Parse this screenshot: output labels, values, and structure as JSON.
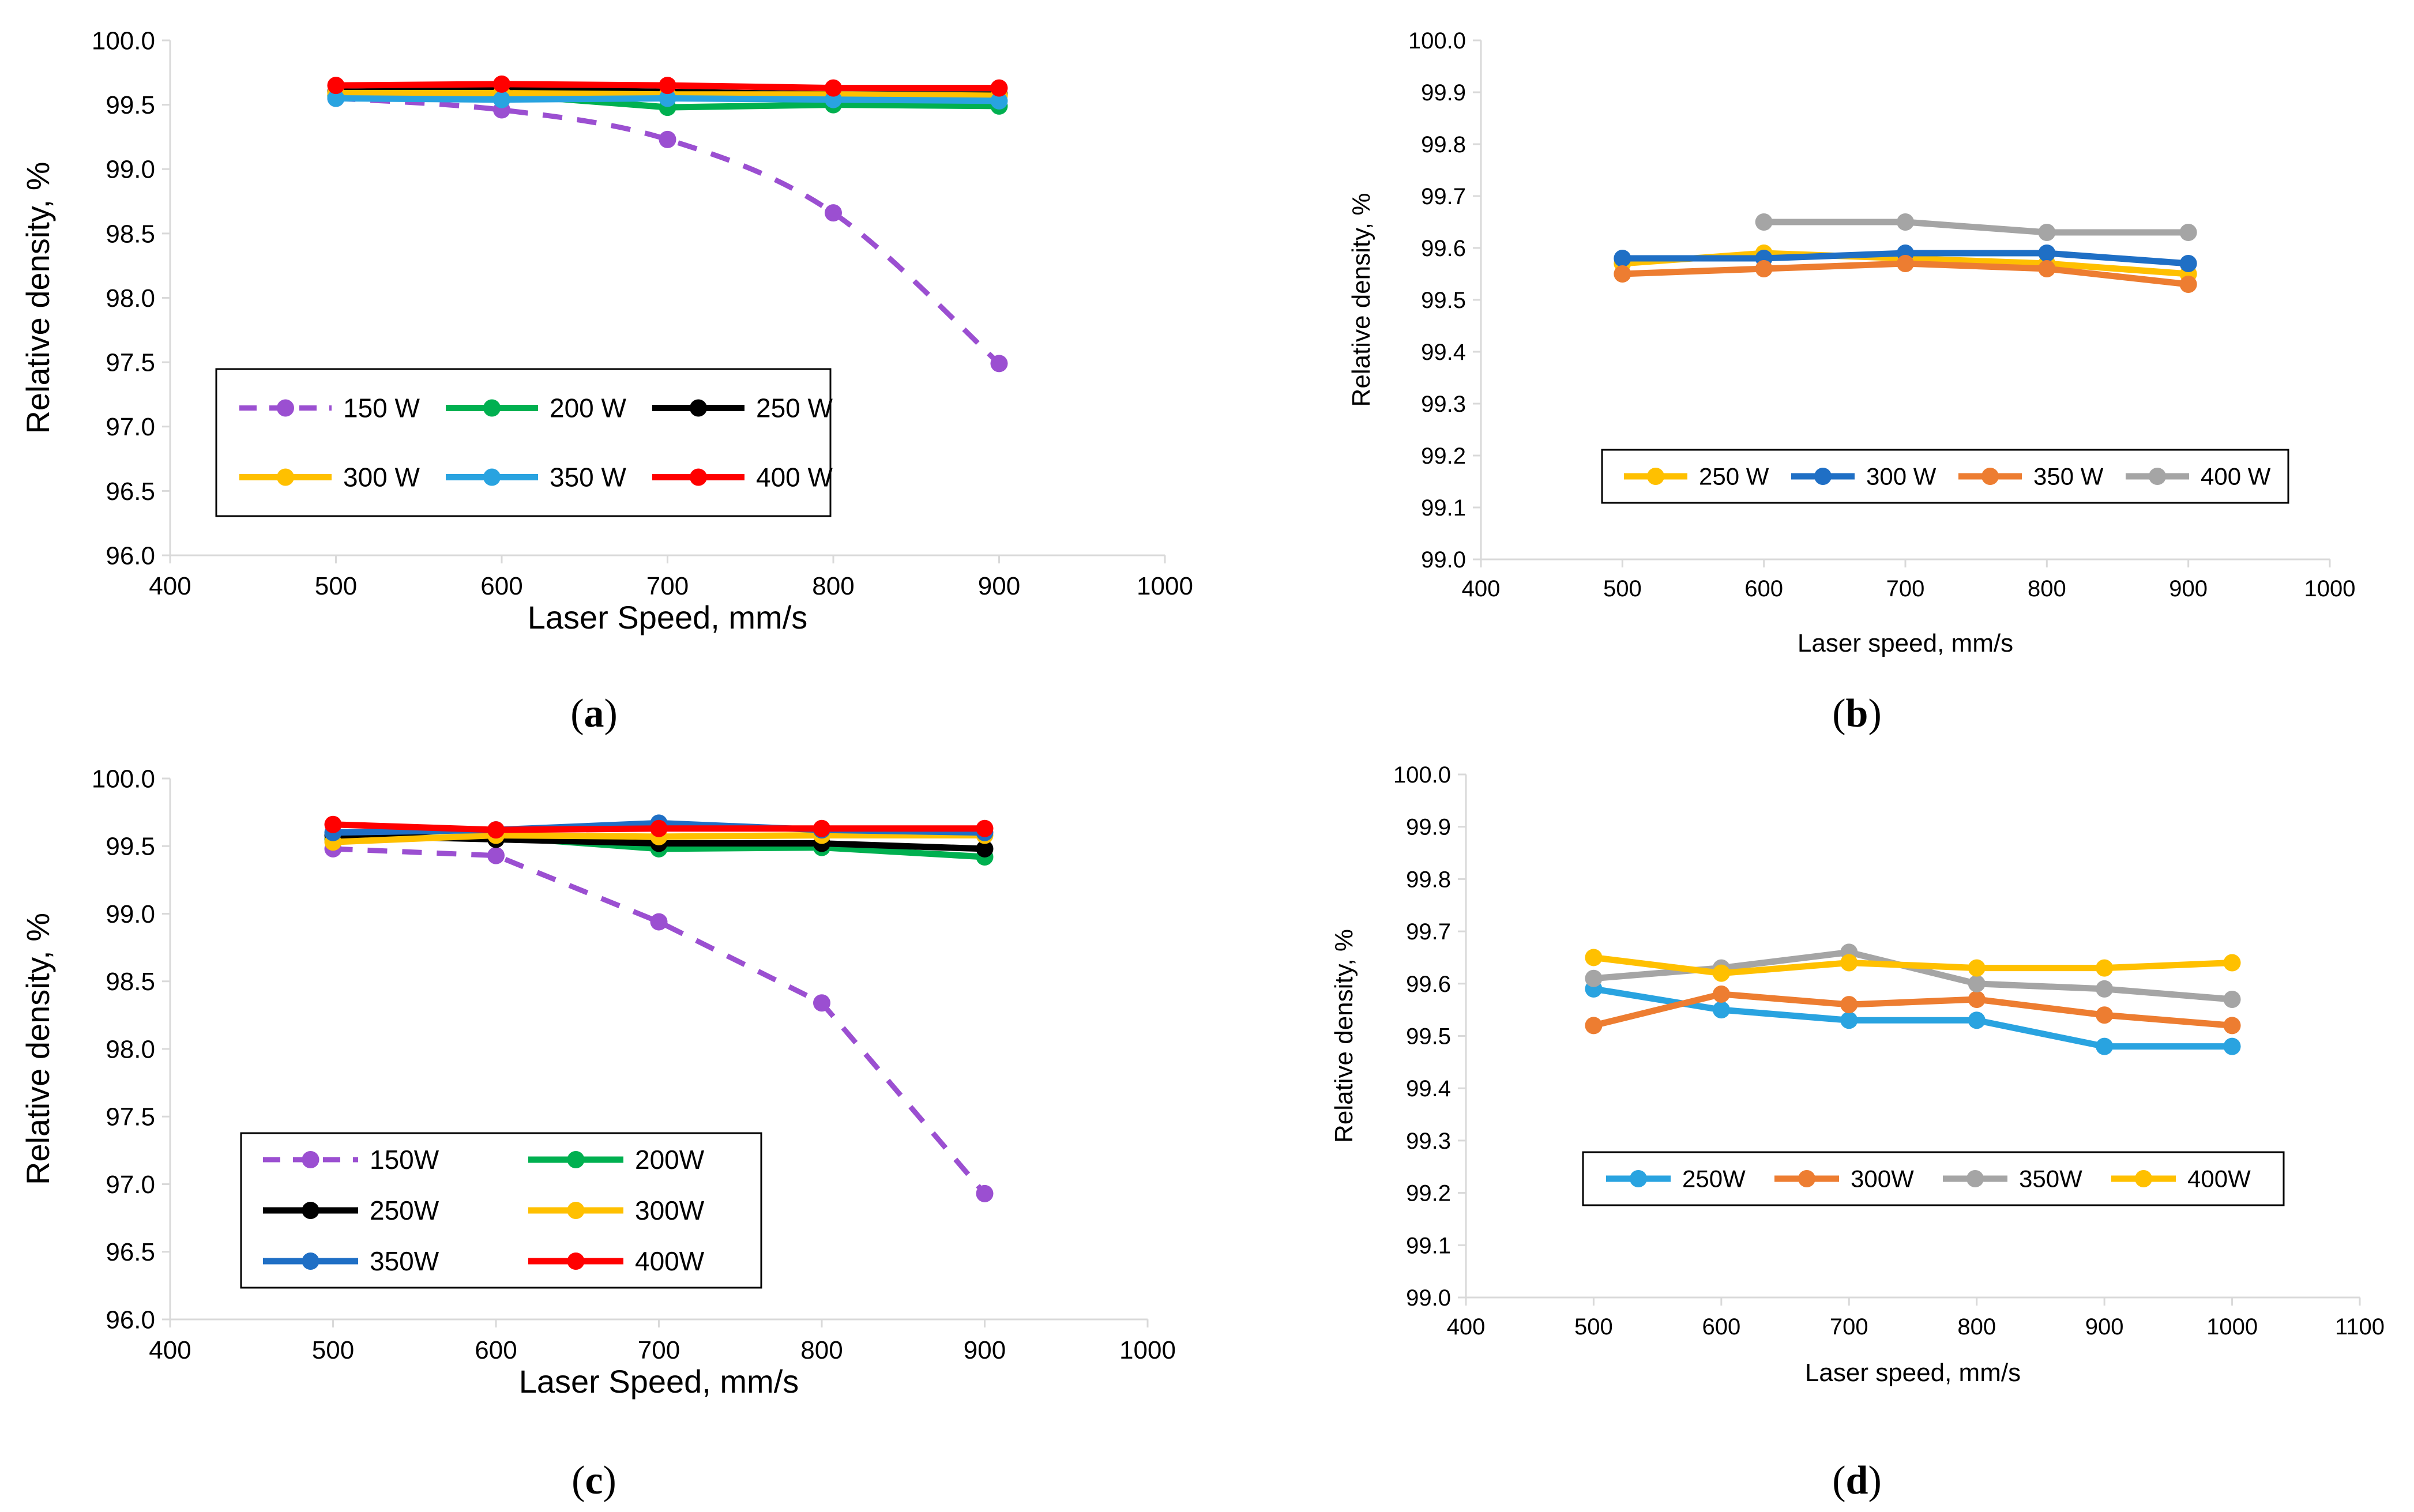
{
  "figure": {
    "panels": [
      "(a)",
      "(b)",
      "(c)",
      "(d)"
    ],
    "panel_letters": [
      "a",
      "b",
      "c",
      "d"
    ]
  },
  "chart_data": [
    {
      "id": "a",
      "type": "line",
      "label": "(a)",
      "xlabel": "Laser Speed, mm/s",
      "ylabel": "Relative density, %",
      "xlim": [
        400,
        1000
      ],
      "ylim": [
        96.0,
        100.0
      ],
      "xticks": [
        400,
        500,
        600,
        700,
        800,
        900,
        1000
      ],
      "yticks": [
        96.0,
        96.5,
        97.0,
        97.5,
        98.0,
        98.5,
        99.0,
        99.5,
        100.0
      ],
      "ytick_labels": [
        "96.0",
        "96.5",
        "97.0",
        "97.5",
        "98.0",
        "98.5",
        "99.0",
        "99.5",
        "100.0"
      ],
      "grid": false,
      "x": [
        500,
        600,
        700,
        800,
        900
      ],
      "series": [
        {
          "name": "150 W",
          "color": "#9b4fd1",
          "dashed": true,
          "smooth": true,
          "values": [
            99.55,
            99.46,
            99.23,
            98.66,
            97.49
          ]
        },
        {
          "name": "200 W",
          "color": "#00b050",
          "values": [
            99.57,
            99.58,
            99.48,
            99.5,
            99.49
          ]
        },
        {
          "name": "250 W",
          "color": "#000000",
          "values": [
            99.6,
            99.62,
            99.6,
            99.58,
            99.58
          ]
        },
        {
          "name": "300 W",
          "color": "#ffc000",
          "values": [
            99.59,
            99.59,
            99.58,
            99.58,
            99.57
          ]
        },
        {
          "name": "350 W",
          "color": "#29a3e0",
          "values": [
            99.55,
            99.54,
            99.55,
            99.54,
            99.53
          ]
        },
        {
          "name": "400 W",
          "color": "#ff0000",
          "values": [
            99.65,
            99.66,
            99.65,
            99.63,
            99.63
          ]
        }
      ],
      "legend": {
        "placement": "lower-left",
        "columns": 3
      }
    },
    {
      "id": "b",
      "type": "line",
      "label": "(b)",
      "xlabel": "Laser speed, mm/s",
      "ylabel": "Relative density, %",
      "xlim": [
        400,
        1000
      ],
      "ylim": [
        99.0,
        100.0
      ],
      "xticks": [
        400,
        500,
        600,
        700,
        800,
        900,
        1000
      ],
      "yticks": [
        99.0,
        99.1,
        99.2,
        99.3,
        99.4,
        99.5,
        99.6,
        99.7,
        99.8,
        99.9,
        100.0
      ],
      "ytick_labels": [
        "99.0",
        "99.1",
        "99.2",
        "99.3",
        "99.4",
        "99.5",
        "99.6",
        "99.7",
        "99.8",
        "99.9",
        "100.0"
      ],
      "grid": false,
      "series": [
        {
          "name": "250 W",
          "color": "#ffc000",
          "x": [
            500,
            600,
            700,
            800,
            900
          ],
          "values": [
            99.57,
            99.59,
            99.58,
            99.57,
            99.55
          ]
        },
        {
          "name": "300 W",
          "color": "#1f6fc5",
          "x": [
            500,
            600,
            700,
            800,
            900
          ],
          "values": [
            99.58,
            99.58,
            99.59,
            99.59,
            99.57
          ]
        },
        {
          "name": "350 W",
          "color": "#ed7d31",
          "x": [
            500,
            600,
            700,
            800,
            900
          ],
          "values": [
            99.55,
            99.56,
            99.57,
            99.56,
            99.53
          ]
        },
        {
          "name": "400 W",
          "color": "#a5a5a5",
          "x": [
            600,
            700,
            800,
            900
          ],
          "values": [
            99.65,
            99.65,
            99.63,
            99.63
          ]
        }
      ],
      "legend": {
        "placement": "lower-center",
        "columns": 4
      }
    },
    {
      "id": "c",
      "type": "line",
      "label": "(c)",
      "xlabel": "Laser Speed, mm/s",
      "ylabel": "Relative density, %",
      "xlim": [
        400,
        1000
      ],
      "ylim": [
        96.0,
        100.0
      ],
      "xticks": [
        400,
        500,
        600,
        700,
        800,
        900,
        1000
      ],
      "yticks": [
        96.0,
        96.5,
        97.0,
        97.5,
        98.0,
        98.5,
        99.0,
        99.5,
        100.0
      ],
      "ytick_labels": [
        "96.0",
        "96.5",
        "97.0",
        "97.5",
        "98.0",
        "98.5",
        "99.0",
        "99.5",
        "100.0"
      ],
      "grid": false,
      "x": [
        500,
        600,
        700,
        800,
        900
      ],
      "series": [
        {
          "name": "150W",
          "color": "#9b4fd1",
          "dashed": true,
          "values": [
            99.48,
            99.43,
            98.94,
            98.34,
            96.93
          ]
        },
        {
          "name": "200W",
          "color": "#00b050",
          "values": [
            99.55,
            99.57,
            99.48,
            99.49,
            99.42
          ]
        },
        {
          "name": "250W",
          "color": "#000000",
          "values": [
            99.58,
            99.55,
            99.52,
            99.52,
            99.48
          ]
        },
        {
          "name": "300W",
          "color": "#ffc000",
          "values": [
            99.53,
            99.58,
            99.57,
            99.58,
            99.58
          ]
        },
        {
          "name": "350W",
          "color": "#1f6fc5",
          "values": [
            99.6,
            99.62,
            99.67,
            99.62,
            99.6
          ]
        },
        {
          "name": "400W",
          "color": "#ff0000",
          "values": [
            99.66,
            99.62,
            99.63,
            99.63,
            99.63
          ]
        }
      ],
      "legend": {
        "placement": "lower-left",
        "columns": 2
      }
    },
    {
      "id": "d",
      "type": "line",
      "label": "(d)",
      "xlabel": "Laser speed, mm/s",
      "ylabel": "Relative density, %",
      "xlim": [
        400,
        1100
      ],
      "ylim": [
        99.0,
        100.0
      ],
      "xticks": [
        400,
        500,
        600,
        700,
        800,
        900,
        1000,
        1100
      ],
      "yticks": [
        99.0,
        99.1,
        99.2,
        99.3,
        99.4,
        99.5,
        99.6,
        99.7,
        99.8,
        99.9,
        100.0
      ],
      "ytick_labels": [
        "99.0",
        "99.1",
        "99.2",
        "99.3",
        "99.4",
        "99.5",
        "99.6",
        "99.7",
        "99.8",
        "99.9",
        "100.0"
      ],
      "grid": false,
      "x": [
        500,
        600,
        700,
        800,
        900,
        1000
      ],
      "series": [
        {
          "name": "250W",
          "color": "#29a3e0",
          "values": [
            99.59,
            99.55,
            99.53,
            99.53,
            99.48,
            99.48
          ]
        },
        {
          "name": "300W",
          "color": "#ed7d31",
          "values": [
            99.52,
            99.58,
            99.56,
            99.57,
            99.54,
            99.52
          ]
        },
        {
          "name": "350W",
          "color": "#a5a5a5",
          "values": [
            99.61,
            99.63,
            99.66,
            99.6,
            99.59,
            99.57
          ]
        },
        {
          "name": "400W",
          "color": "#ffc000",
          "values": [
            99.65,
            99.62,
            99.64,
            99.63,
            99.63,
            99.64
          ]
        }
      ],
      "legend": {
        "placement": "lower-center",
        "columns": 4
      }
    }
  ]
}
